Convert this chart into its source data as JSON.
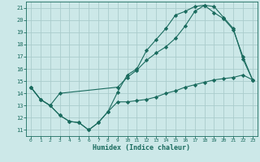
{
  "title": "",
  "xlabel": "Humidex (Indice chaleur)",
  "bg_color": "#cce8e8",
  "line_color": "#1a6b5e",
  "grid_color": "#aacccc",
  "xlim": [
    -0.5,
    23.5
  ],
  "ylim": [
    10.5,
    21.5
  ],
  "yticks": [
    11,
    12,
    13,
    14,
    15,
    16,
    17,
    18,
    19,
    20,
    21
  ],
  "xticks": [
    0,
    1,
    2,
    3,
    4,
    5,
    6,
    7,
    8,
    9,
    10,
    11,
    12,
    13,
    14,
    15,
    16,
    17,
    18,
    19,
    20,
    21,
    22,
    23
  ],
  "line1_x": [
    0,
    1,
    2,
    3,
    4,
    5,
    6,
    7,
    8,
    9,
    10,
    11,
    12,
    13,
    14,
    15,
    16,
    17,
    18,
    19,
    20,
    21,
    22,
    23
  ],
  "line1_y": [
    14.5,
    13.5,
    13.0,
    12.2,
    11.7,
    11.6,
    11.0,
    11.6,
    12.5,
    13.3,
    13.3,
    13.4,
    13.5,
    13.7,
    14.0,
    14.2,
    14.5,
    14.7,
    14.9,
    15.1,
    15.2,
    15.3,
    15.5,
    15.1
  ],
  "line2_x": [
    0,
    1,
    2,
    3,
    9,
    10,
    11,
    12,
    13,
    14,
    15,
    16,
    17,
    18,
    19,
    20,
    21,
    22,
    23
  ],
  "line2_y": [
    14.5,
    13.5,
    13.0,
    14.0,
    14.5,
    15.3,
    15.9,
    16.7,
    17.3,
    17.8,
    18.5,
    19.5,
    20.7,
    21.2,
    21.1,
    20.2,
    19.3,
    16.8,
    15.1
  ],
  "line3_x": [
    0,
    1,
    2,
    3,
    4,
    5,
    6,
    7,
    8,
    9,
    10,
    11,
    12,
    13,
    14,
    15,
    16,
    17,
    18,
    19,
    20,
    21,
    22,
    23
  ],
  "line3_y": [
    14.5,
    13.5,
    13.0,
    12.2,
    11.7,
    11.6,
    11.0,
    11.6,
    12.5,
    14.1,
    15.5,
    16.0,
    17.5,
    18.4,
    19.3,
    20.4,
    20.7,
    21.1,
    21.2,
    20.6,
    20.1,
    19.2,
    17.0,
    15.1
  ]
}
